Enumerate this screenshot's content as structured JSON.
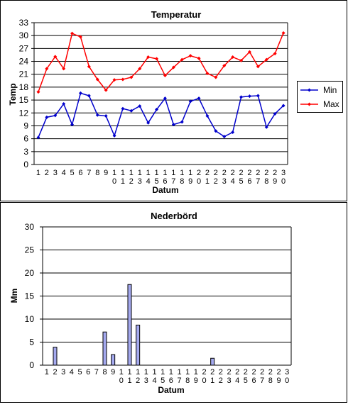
{
  "chart_data": [
    {
      "type": "line",
      "title": "Temperatur",
      "xlabel": "Datum",
      "ylabel": "Temp",
      "ylim": [
        0,
        33
      ],
      "yticks": [
        0,
        3,
        6,
        9,
        12,
        15,
        18,
        21,
        24,
        27,
        30,
        33
      ],
      "grid": true,
      "legend": "right",
      "categories": [
        "1",
        "2",
        "3",
        "4",
        "5",
        "6",
        "7",
        "8",
        "9",
        "10",
        "11",
        "12",
        "13",
        "14",
        "15",
        "16",
        "17",
        "18",
        "19",
        "20",
        "21",
        "22",
        "23",
        "24",
        "25",
        "26",
        "27",
        "28",
        "29",
        "30"
      ],
      "series": [
        {
          "name": "Min",
          "color": "#0000cc",
          "values": [
            6.3,
            11.0,
            11.4,
            14.1,
            9.3,
            16.6,
            16.0,
            11.5,
            11.3,
            6.7,
            13.0,
            12.5,
            13.6,
            9.7,
            12.8,
            15.4,
            9.3,
            9.9,
            14.7,
            15.4,
            11.3,
            7.8,
            6.5,
            7.5,
            15.7,
            15.9,
            16.0,
            8.7,
            11.8,
            13.7
          ]
        },
        {
          "name": "Max",
          "color": "#ff0000",
          "values": [
            16.9,
            22.3,
            25.1,
            22.3,
            30.5,
            29.7,
            22.8,
            19.8,
            17.3,
            19.7,
            19.8,
            20.3,
            22.3,
            25.0,
            24.6,
            20.7,
            22.6,
            24.4,
            25.3,
            24.7,
            21.2,
            20.3,
            23.0,
            25.0,
            24.2,
            26.2,
            22.8,
            24.4,
            25.8,
            30.6
          ]
        }
      ]
    },
    {
      "type": "bar",
      "title": "Nederbörd",
      "xlabel": "Datum",
      "ylabel": "Mm",
      "ylim": [
        0,
        30
      ],
      "yticks": [
        0,
        5,
        10,
        15,
        20,
        25,
        30
      ],
      "grid": true,
      "categories": [
        "1",
        "2",
        "3",
        "4",
        "5",
        "6",
        "7",
        "8",
        "9",
        "10",
        "11",
        "12",
        "13",
        "14",
        "15",
        "16",
        "17",
        "18",
        "19",
        "20",
        "21",
        "22",
        "23",
        "24",
        "25",
        "26",
        "27",
        "28",
        "29",
        "30"
      ],
      "series": [
        {
          "name": "",
          "color": "#a4a9ef",
          "values": [
            0,
            3.9,
            0,
            0,
            0,
            0,
            0,
            7.2,
            2.3,
            0,
            17.5,
            8.7,
            0,
            0,
            0,
            0,
            0,
            0,
            0,
            0,
            1.5,
            0,
            0,
            0,
            0,
            0,
            0,
            0,
            0,
            0
          ]
        }
      ]
    }
  ]
}
